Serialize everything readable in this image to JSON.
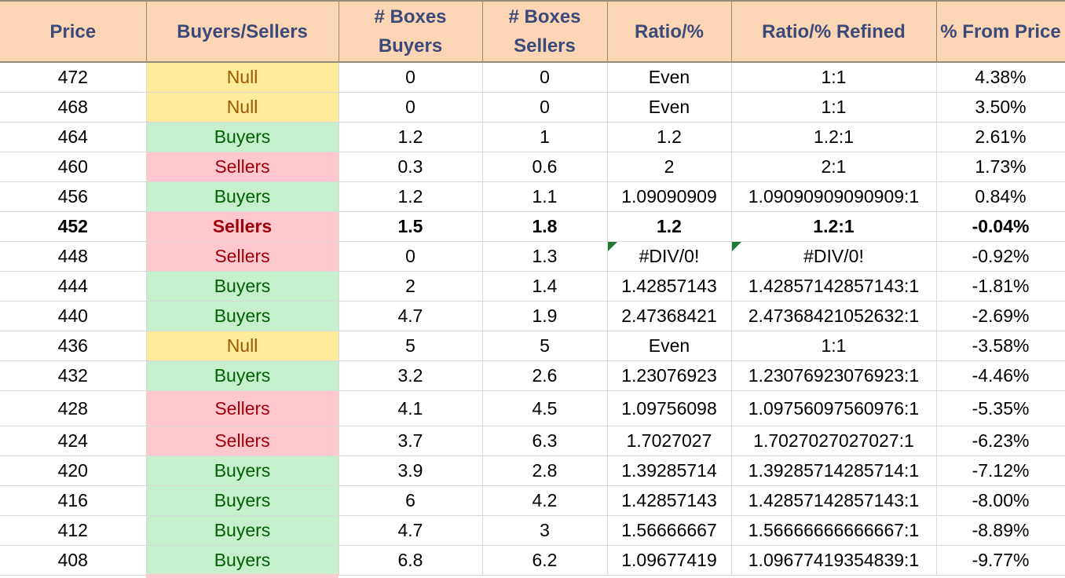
{
  "headers": [
    "Price",
    "Buyers/Sellers",
    "# Boxes Buyers",
    "# Boxes Sellers",
    "Ratio/%",
    "Ratio/% Refined",
    "% From Price"
  ],
  "rows": [
    {
      "price": "472",
      "side": "Null",
      "boxes_buyers": "0",
      "boxes_sellers": "0",
      "ratio": "Even",
      "ratio_refined": "1:1",
      "pct_from_price": "4.38%"
    },
    {
      "price": "468",
      "side": "Null",
      "boxes_buyers": "0",
      "boxes_sellers": "0",
      "ratio": "Even",
      "ratio_refined": "1:1",
      "pct_from_price": "3.50%"
    },
    {
      "price": "464",
      "side": "Buyers",
      "boxes_buyers": "1.2",
      "boxes_sellers": "1",
      "ratio": "1.2",
      "ratio_refined": "1.2:1",
      "pct_from_price": "2.61%"
    },
    {
      "price": "460",
      "side": "Sellers",
      "boxes_buyers": "0.3",
      "boxes_sellers": "0.6",
      "ratio": "2",
      "ratio_refined": "2:1",
      "pct_from_price": "1.73%"
    },
    {
      "price": "456",
      "side": "Buyers",
      "boxes_buyers": "1.2",
      "boxes_sellers": "1.1",
      "ratio": "1.09090909",
      "ratio_refined": "1.09090909090909:1",
      "pct_from_price": "0.84%"
    },
    {
      "price": "452",
      "side": "Sellers",
      "boxes_buyers": "1.5",
      "boxes_sellers": "1.8",
      "ratio": "1.2",
      "ratio_refined": "1.2:1",
      "pct_from_price": "-0.04%"
    },
    {
      "price": "448",
      "side": "Sellers",
      "boxes_buyers": "0",
      "boxes_sellers": "1.3",
      "ratio": "#DIV/0!",
      "ratio_refined": "#DIV/0!",
      "pct_from_price": "-0.92%"
    },
    {
      "price": "444",
      "side": "Buyers",
      "boxes_buyers": "2",
      "boxes_sellers": "1.4",
      "ratio": "1.42857143",
      "ratio_refined": "1.42857142857143:1",
      "pct_from_price": "-1.81%"
    },
    {
      "price": "440",
      "side": "Buyers",
      "boxes_buyers": "4.7",
      "boxes_sellers": "1.9",
      "ratio": "2.47368421",
      "ratio_refined": "2.47368421052632:1",
      "pct_from_price": "-2.69%"
    },
    {
      "price": "436",
      "side": "Null",
      "boxes_buyers": "5",
      "boxes_sellers": "5",
      "ratio": "Even",
      "ratio_refined": "1:1",
      "pct_from_price": "-3.58%"
    },
    {
      "price": "432",
      "side": "Buyers",
      "boxes_buyers": "3.2",
      "boxes_sellers": "2.6",
      "ratio": "1.23076923",
      "ratio_refined": "1.23076923076923:1",
      "pct_from_price": "-4.46%"
    },
    {
      "price": "428",
      "side": "Sellers",
      "boxes_buyers": "4.1",
      "boxes_sellers": "4.5",
      "ratio": "1.09756098",
      "ratio_refined": "1.09756097560976:1",
      "pct_from_price": "-5.35%"
    },
    {
      "price": "424",
      "side": "Sellers",
      "boxes_buyers": "3.7",
      "boxes_sellers": "6.3",
      "ratio": "1.7027027",
      "ratio_refined": "1.7027027027027:1",
      "pct_from_price": "-6.23%"
    },
    {
      "price": "420",
      "side": "Buyers",
      "boxes_buyers": "3.9",
      "boxes_sellers": "2.8",
      "ratio": "1.39285714",
      "ratio_refined": "1.39285714285714:1",
      "pct_from_price": "-7.12%"
    },
    {
      "price": "416",
      "side": "Buyers",
      "boxes_buyers": "6",
      "boxes_sellers": "4.2",
      "ratio": "1.42857143",
      "ratio_refined": "1.42857142857143:1",
      "pct_from_price": "-8.00%"
    },
    {
      "price": "412",
      "side": "Buyers",
      "boxes_buyers": "4.7",
      "boxes_sellers": "3",
      "ratio": "1.56666667",
      "ratio_refined": "1.56666666666667:1",
      "pct_from_price": "-8.89%"
    },
    {
      "price": "408",
      "side": "Buyers",
      "boxes_buyers": "6.8",
      "boxes_sellers": "6.2",
      "ratio": "1.09677419",
      "ratio_refined": "1.09677419354839:1",
      "pct_from_price": "-9.77%"
    }
  ],
  "highlighted_price": "452",
  "error_flag_icon": "error-indicator-triangle",
  "colors": {
    "header_bg": "#fcd5b4",
    "header_text": "#3b4a7a",
    "null_bg": "#ffeb9c",
    "null_text": "#9c5700",
    "buyers_bg": "#c6efce",
    "buyers_text": "#006100",
    "sellers_bg": "#ffc7ce",
    "sellers_text": "#9c0006",
    "error_flag": "#1e7b34"
  }
}
